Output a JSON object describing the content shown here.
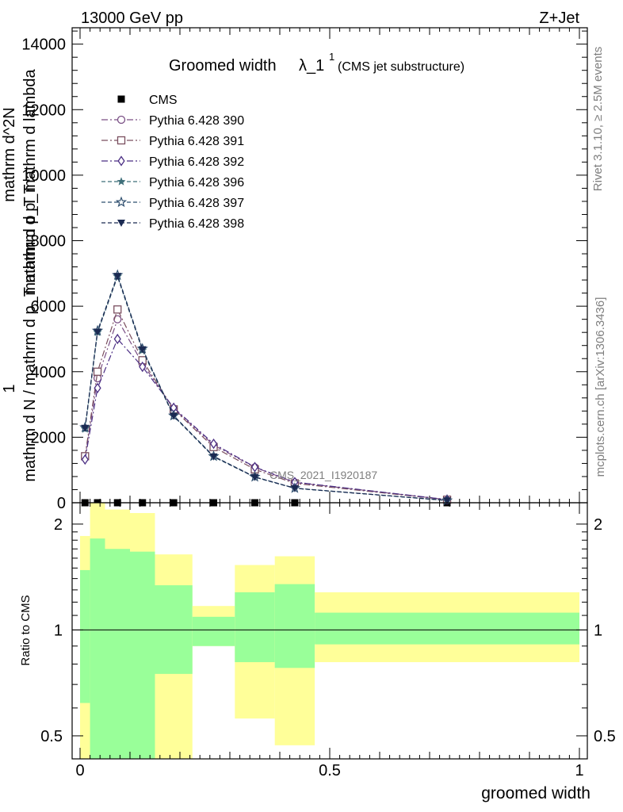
{
  "header": {
    "energy_label": "13000 GeV pp",
    "process_label": "Z+Jet",
    "side_label_rivet": "Rivet 3.1.10, ≥ 2.5M events",
    "side_label_mcplots": "mcplots.cern.ch [arXiv:1306.3436]",
    "watermark": "CMS_2021_I1920187"
  },
  "chart_data": [
    {
      "type": "line",
      "title_main": "Groomed width",
      "title_symbol": "λ_1",
      "title_sup": "1",
      "title_sub": "(CMS jet substructure)",
      "ylabel_lines": [
        "1",
        "mathrm d N / mathrm d p_T mathrm d p_T",
        "mathrm d^2N",
        "mathrm d p_T mathrm d lambda"
      ],
      "xlim": [
        0,
        1
      ],
      "ylim": [
        0,
        14500
      ],
      "yticks": [
        0,
        2000,
        4000,
        6000,
        8000,
        10000,
        12000,
        14000
      ],
      "ytick_labels": [
        "0",
        "2000",
        "4000",
        "6000",
        "8000",
        "10000",
        "12000",
        "14000"
      ],
      "x": [
        0.01,
        0.035,
        0.075,
        0.125,
        0.1875,
        0.2675,
        0.35,
        0.43,
        0.735
      ],
      "series": [
        {
          "name": "CMS",
          "color": "#000000",
          "marker": "square",
          "values": [
            0,
            0,
            0,
            0,
            0,
            0,
            0,
            0,
            0
          ]
        },
        {
          "name": "Pythia 6.428 390",
          "color": "#7a4f85",
          "marker": "circle-open",
          "dash": "8,3,2,3",
          "values": [
            1380,
            3800,
            5600,
            4250,
            2870,
            1760,
            1080,
            620,
            95
          ]
        },
        {
          "name": "Pythia 6.428 391",
          "color": "#7a4f5f",
          "marker": "square-open",
          "dash": "8,3,2,3",
          "values": [
            1420,
            4000,
            5900,
            4350,
            2850,
            1700,
            1020,
            590,
            92
          ]
        },
        {
          "name": "Pythia 6.428 392",
          "color": "#4b2e84",
          "marker": "diamond-open",
          "dash": "8,3,2,3",
          "values": [
            1320,
            3500,
            5000,
            4150,
            2900,
            1800,
            1090,
            630,
            98
          ]
        },
        {
          "name": "Pythia 6.428 396",
          "color": "#3f6f7a",
          "marker": "star",
          "dash": "5,3",
          "values": [
            2250,
            5200,
            6900,
            4650,
            2640,
            1400,
            780,
            440,
            70
          ]
        },
        {
          "name": "Pythia 6.428 397",
          "color": "#2f4f6f",
          "marker": "star-open",
          "dash": "5,3",
          "values": [
            2300,
            5250,
            6950,
            4700,
            2660,
            1420,
            790,
            445,
            71
          ]
        },
        {
          "name": "Pythia 6.428 398",
          "color": "#1b2a52",
          "marker": "triangle-down",
          "dash": "5,3",
          "values": [
            2280,
            5220,
            6920,
            4680,
            2650,
            1410,
            785,
            442,
            70
          ]
        }
      ]
    },
    {
      "type": "area",
      "ylabel": "Ratio to CMS",
      "xlabel": "groomed width",
      "scale": "log",
      "ylim": [
        0.43,
        2.3
      ],
      "yticks": [
        0.5,
        1,
        2
      ],
      "ytick_labels": [
        "0.5",
        "1",
        "2"
      ],
      "xticks": [
        0,
        0.5,
        1
      ],
      "xtick_labels": [
        "0",
        "0.5",
        "1"
      ],
      "reference_line": 1,
      "bins": [
        {
          "x_low": 0.0,
          "x_high": 0.02,
          "stat_low": 0.62,
          "stat_high": 1.48,
          "total_low": 0.0,
          "total_high": 1.85
        },
        {
          "x_low": 0.02,
          "x_high": 0.05,
          "stat_low": 0.0,
          "stat_high": 1.82,
          "total_low": 0.0,
          "total_high": 2.3
        },
        {
          "x_low": 0.05,
          "x_high": 0.1,
          "stat_low": 0.0,
          "stat_high": 1.7,
          "total_low": 0.0,
          "total_high": 2.2
        },
        {
          "x_low": 0.1,
          "x_high": 0.15,
          "stat_low": 0.0,
          "stat_high": 1.67,
          "total_low": 0.0,
          "total_high": 2.15
        },
        {
          "x_low": 0.15,
          "x_high": 0.225,
          "stat_low": 0.75,
          "stat_high": 1.34,
          "total_low": 0.39,
          "total_high": 1.64
        },
        {
          "x_low": 0.225,
          "x_high": 0.31,
          "stat_low": 0.9,
          "stat_high": 1.09,
          "total_low": 0.9,
          "total_high": 1.17
        },
        {
          "x_low": 0.31,
          "x_high": 0.39,
          "stat_low": 0.81,
          "stat_high": 1.28,
          "total_low": 0.56,
          "total_high": 1.53
        },
        {
          "x_low": 0.39,
          "x_high": 0.47,
          "stat_low": 0.78,
          "stat_high": 1.35,
          "total_low": 0.47,
          "total_high": 1.62
        },
        {
          "x_low": 0.47,
          "x_high": 1.0,
          "stat_low": 0.91,
          "stat_high": 1.12,
          "total_low": 0.81,
          "total_high": 1.28
        }
      ],
      "colors": {
        "stat": "#99ff99",
        "total": "#ffff99"
      }
    }
  ]
}
